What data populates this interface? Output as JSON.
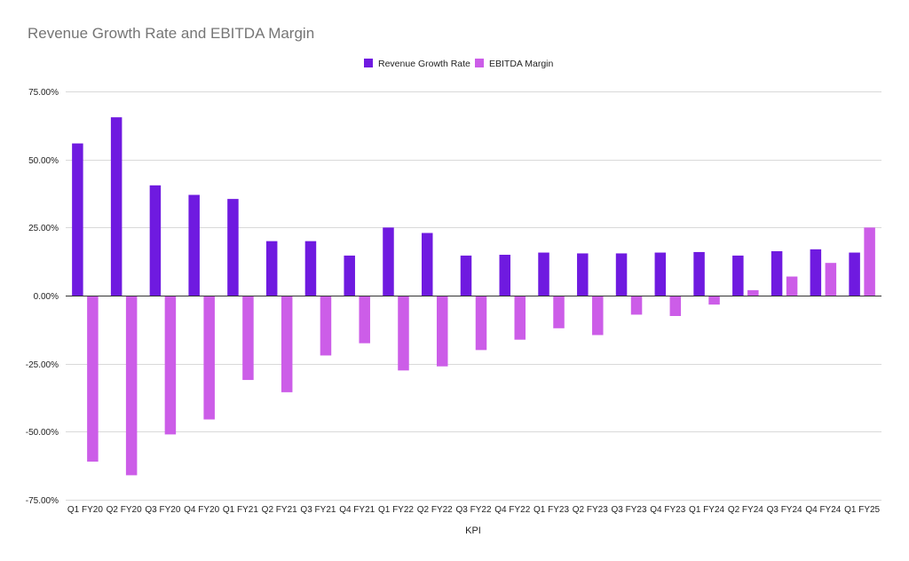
{
  "chart_data": {
    "type": "bar",
    "title": "Revenue Growth Rate and EBITDA Margin",
    "xlabel": "KPI",
    "ylabel": "",
    "ylim": [
      -75,
      75
    ],
    "yticks": [
      75,
      50,
      25,
      0,
      -25,
      -50,
      -75
    ],
    "ytick_labels": [
      "75.00%",
      "50.00%",
      "25.00%",
      "0.00%",
      "-25.00%",
      "-50.00%",
      "-75.00%"
    ],
    "legend_position": "top-center",
    "grid": true,
    "categories": [
      "Q1 FY20",
      "Q2 FY20",
      "Q3 FY20",
      "Q4 FY20",
      "Q1 FY21",
      "Q2 FY21",
      "Q3 FY21",
      "Q4 FY21",
      "Q1 FY22",
      "Q2 FY22",
      "Q3 FY22",
      "Q4 FY22",
      "Q1 FY23",
      "Q2 FY23",
      "Q3 FY23",
      "Q4 FY23",
      "Q1 FY24",
      "Q2 FY24",
      "Q3 FY24",
      "Q4 FY24",
      "Q1 FY25"
    ],
    "series": [
      {
        "name": "Revenue Growth Rate",
        "color": "#6f1ae0",
        "values": [
          55.9,
          65.5,
          40.5,
          37.0,
          35.5,
          20.0,
          20.0,
          14.7,
          25.0,
          23.0,
          14.7,
          15.0,
          15.8,
          15.5,
          15.5,
          15.8,
          16.0,
          14.7,
          16.3,
          17.0,
          15.8
        ]
      },
      {
        "name": "EBITDA Margin",
        "color": "#cc5de8",
        "values": [
          -61.0,
          -66.0,
          -51.0,
          -45.5,
          -31.0,
          -35.5,
          -22.0,
          -17.5,
          -27.5,
          -26.0,
          -20.0,
          -16.2,
          -12.0,
          -14.5,
          -7.0,
          -7.5,
          -3.3,
          2.0,
          7.0,
          12.0,
          25.0
        ]
      }
    ]
  }
}
